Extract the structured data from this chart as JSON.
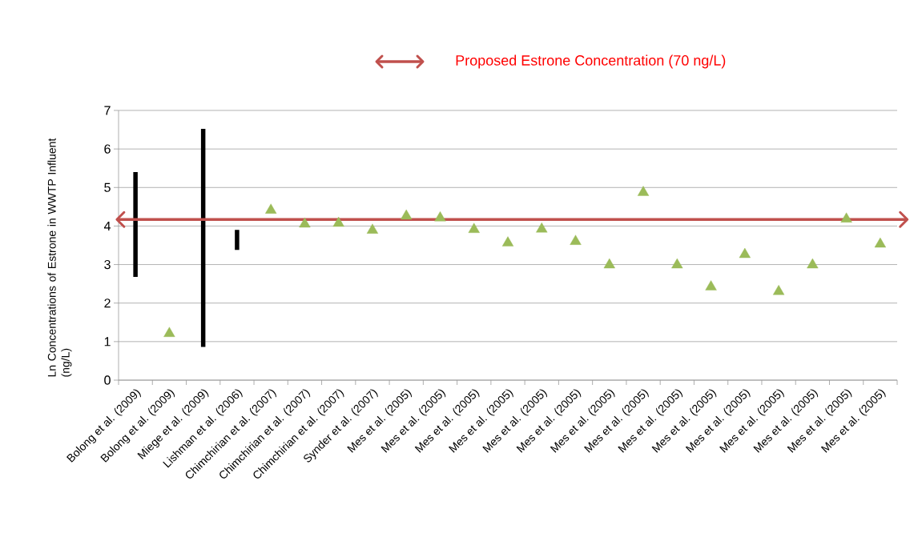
{
  "chart_data": {
    "type": "bar",
    "ylabel": "Ln Concentrations of Estrone  in WWTP Influent (ng/L)",
    "categories": [
      "Bolong et al. (2009)",
      "Bolong et al. (2009)",
      "Miege et al. (2009)",
      "Lishman et al. (2006)",
      "Chimchirian et al. (2007)",
      "Chimchirian et al. (2007)",
      "Chimchirian et al. (2007)",
      "Synder et al. (2007)",
      "Mes et al. (2005)",
      "Mes et al. (2005)",
      "Mes et al. (2005)",
      "Mes et al. (2005)",
      "Mes et al. (2005)",
      "Mes et al. (2005)",
      "Mes et al. (2005)",
      "Mes et al. (2005)",
      "Mes et al. (2005)",
      "Mes et al. (2005)",
      "Mes et al. (2005)",
      "Mes et al. (2005)",
      "Mes et al. (2005)",
      "Mes et al. (2005)",
      "Mes et al. (2005)"
    ],
    "series": [
      {
        "type": "bar",
        "color": "#000000",
        "base": [
          2.68,
          null,
          0.86,
          3.38,
          null,
          null,
          null,
          null,
          null,
          null,
          null,
          null,
          null,
          null,
          null,
          null,
          null,
          null,
          null,
          null,
          null,
          null,
          null
        ],
        "values": [
          2.72,
          null,
          5.66,
          0.52,
          null,
          null,
          null,
          null,
          null,
          null,
          null,
          null,
          null,
          null,
          null,
          null,
          null,
          null,
          null,
          null,
          null,
          null,
          null
        ]
      },
      {
        "type": "scatter",
        "color": "#9bbb59",
        "marker": "triangle",
        "values": [
          null,
          1.21,
          null,
          null,
          4.41,
          4.05,
          4.07,
          3.89,
          4.26,
          4.21,
          3.91,
          3.56,
          3.92,
          3.6,
          2.99,
          4.87,
          2.99,
          2.42,
          3.26,
          2.3,
          2.99,
          4.18,
          3.53
        ]
      }
    ],
    "ylim": [
      0,
      7
    ],
    "yticks": [
      0,
      1,
      2,
      3,
      4,
      5,
      6,
      7
    ],
    "grid": "y",
    "legend": "top",
    "ref_lines": [
      {
        "axis": "y",
        "value": 4.17,
        "label": "Proposed Estrone Concentration (70 ng/L)",
        "color": "#c0504d"
      }
    ]
  }
}
